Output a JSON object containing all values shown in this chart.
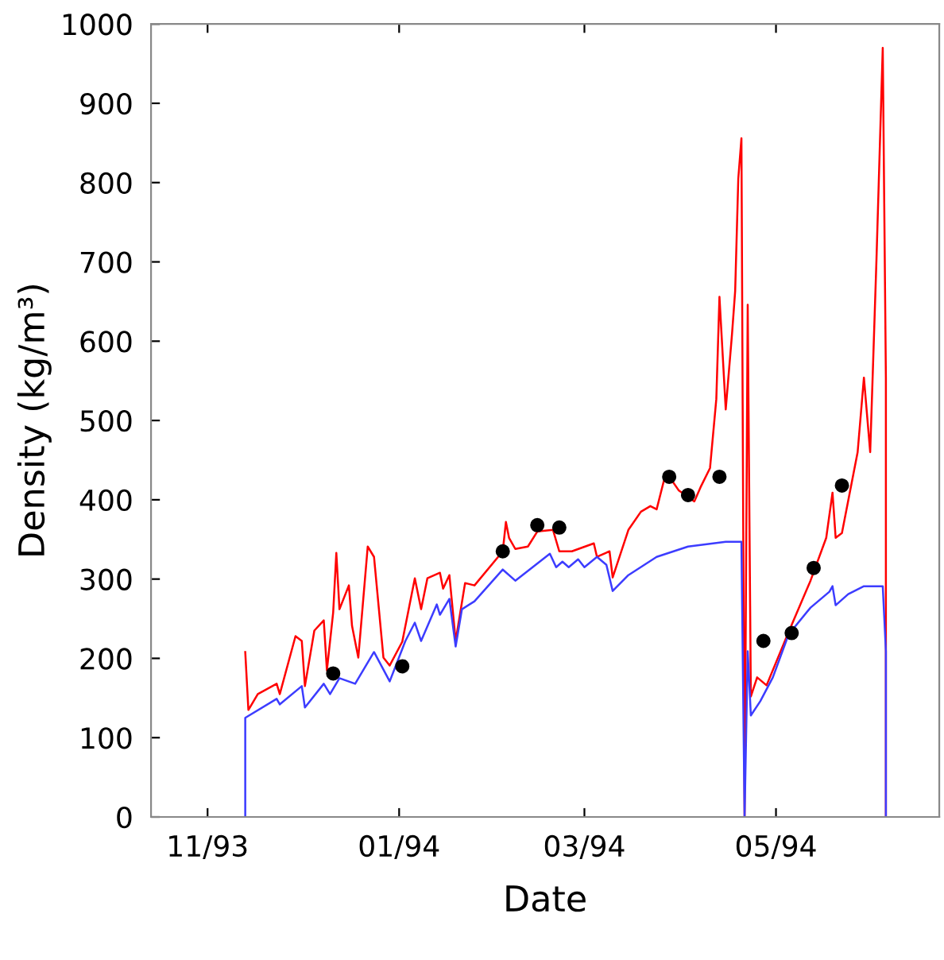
{
  "chart_data": {
    "type": "line",
    "xlabel": "Date",
    "ylabel": "Density (kg/m³)",
    "xlim": [
      "1993-10-14",
      "1994-06-22"
    ],
    "xticks": [
      {
        "value": "1993-11-01",
        "label": "11/93"
      },
      {
        "value": "1994-01-01",
        "label": "01/94"
      },
      {
        "value": "1994-03-01",
        "label": "03/94"
      },
      {
        "value": "1994-05-01",
        "label": "05/94"
      }
    ],
    "ylim": [
      0,
      1000
    ],
    "yticks": [
      0,
      100,
      200,
      300,
      400,
      500,
      600,
      700,
      800,
      900,
      1000
    ],
    "grid": false,
    "series": [
      {
        "color": "#ff0000",
        "x": [
          "1993-11-13",
          "1993-11-14",
          "1993-11-17",
          "1993-11-23",
          "1993-11-24",
          "1993-11-29",
          "1993-12-01",
          "1993-12-02",
          "1993-12-05",
          "1993-12-08",
          "1993-12-09",
          "1993-12-11",
          "1993-12-12",
          "1993-12-13",
          "1993-12-16",
          "1993-12-17",
          "1993-12-19",
          "1993-12-22",
          "1993-12-24",
          "1993-12-27",
          "1993-12-29",
          "1994-01-02",
          "1994-01-06",
          "1994-01-08",
          "1994-01-10",
          "1994-01-14",
          "1994-01-15",
          "1994-01-17",
          "1994-01-19",
          "1994-01-22",
          "1994-01-25",
          "1994-02-03",
          "1994-02-04",
          "1994-02-05",
          "1994-02-07",
          "1994-02-11",
          "1994-02-14",
          "1994-02-19",
          "1994-02-21",
          "1994-02-25",
          "1994-03-04",
          "1994-03-05",
          "1994-03-09",
          "1994-03-10",
          "1994-03-15",
          "1994-03-19",
          "1994-03-22",
          "1994-03-24",
          "1994-03-27",
          "1994-03-31",
          "1994-04-05",
          "1994-04-07",
          "1994-04-10",
          "1994-04-12",
          "1994-04-13",
          "1994-04-15",
          "1994-04-17",
          "1994-04-18",
          "1994-04-19",
          "1994-04-20",
          "1994-04-21",
          "1994-04-22",
          "1994-04-23",
          "1994-04-25",
          "1994-04-28",
          "1994-05-05",
          "1994-05-12",
          "1994-05-17",
          "1994-05-19",
          "1994-05-20",
          "1994-05-22",
          "1994-05-27",
          "1994-05-29",
          "1994-05-31",
          "1994-06-02",
          "1994-06-04",
          "1994-06-05",
          "1994-06-05"
        ],
        "values": [
          208,
          135,
          155,
          168,
          155,
          228,
          222,
          165,
          235,
          248,
          185,
          258,
          333,
          262,
          292,
          241,
          201,
          341,
          328,
          201,
          191,
          221,
          301,
          262,
          301,
          308,
          288,
          305,
          222,
          295,
          292,
          335,
          372,
          352,
          338,
          341,
          360,
          362,
          335,
          335,
          345,
          328,
          335,
          302,
          362,
          385,
          392,
          388,
          435,
          412,
          398,
          416,
          440,
          527,
          656,
          514,
          609,
          663,
          805,
          856,
          0,
          646,
          152,
          176,
          166,
          233,
          298,
          352,
          409,
          352,
          358,
          460,
          554,
          460,
          703,
          970,
          554,
          0
        ]
      },
      {
        "color": "#3c3cff",
        "x": [
          "1993-11-13",
          "1993-11-13",
          "1993-11-23",
          "1993-11-24",
          "1993-12-01",
          "1993-12-02",
          "1993-12-08",
          "1993-12-10",
          "1993-12-13",
          "1993-12-18",
          "1993-12-24",
          "1993-12-29",
          "1994-01-03",
          "1994-01-06",
          "1994-01-08",
          "1994-01-13",
          "1994-01-14",
          "1994-01-17",
          "1994-01-19",
          "1994-01-21",
          "1994-01-25",
          "1994-02-03",
          "1994-02-07",
          "1994-02-18",
          "1994-02-20",
          "1994-02-22",
          "1994-02-24",
          "1994-02-27",
          "1994-03-01",
          "1994-03-05",
          "1994-03-08",
          "1994-03-10",
          "1994-03-15",
          "1994-03-24",
          "1994-04-03",
          "1994-04-15",
          "1994-04-20",
          "1994-04-21",
          "1994-04-22",
          "1994-04-23",
          "1994-04-26",
          "1994-04-30",
          "1994-05-05",
          "1994-05-12",
          "1994-05-18",
          "1994-05-19",
          "1994-05-20",
          "1994-05-24",
          "1994-05-29",
          "1994-06-04",
          "1994-06-05",
          "1994-06-05"
        ],
        "values": [
          0,
          125,
          149,
          142,
          165,
          138,
          168,
          155,
          175,
          168,
          208,
          171,
          222,
          245,
          222,
          268,
          255,
          275,
          215,
          262,
          272,
          312,
          298,
          332,
          315,
          322,
          315,
          325,
          315,
          328,
          318,
          285,
          305,
          328,
          341,
          347,
          347,
          0,
          209,
          128,
          146,
          176,
          230,
          264,
          284,
          291,
          267,
          281,
          291,
          291,
          209,
          0
        ]
      },
      {
        "type": "scatter",
        "color": "#000000",
        "marker": "circle",
        "x": [
          "1993-12-11",
          "1994-01-02",
          "1994-02-03",
          "1994-02-14",
          "1994-02-21",
          "1994-03-28",
          "1994-04-03",
          "1994-04-13",
          "1994-04-27",
          "1994-05-06",
          "1994-05-13",
          "1994-05-22"
        ],
        "values": [
          181,
          190,
          335,
          368,
          365,
          429,
          406,
          429,
          222,
          232,
          314,
          418
        ]
      }
    ]
  }
}
